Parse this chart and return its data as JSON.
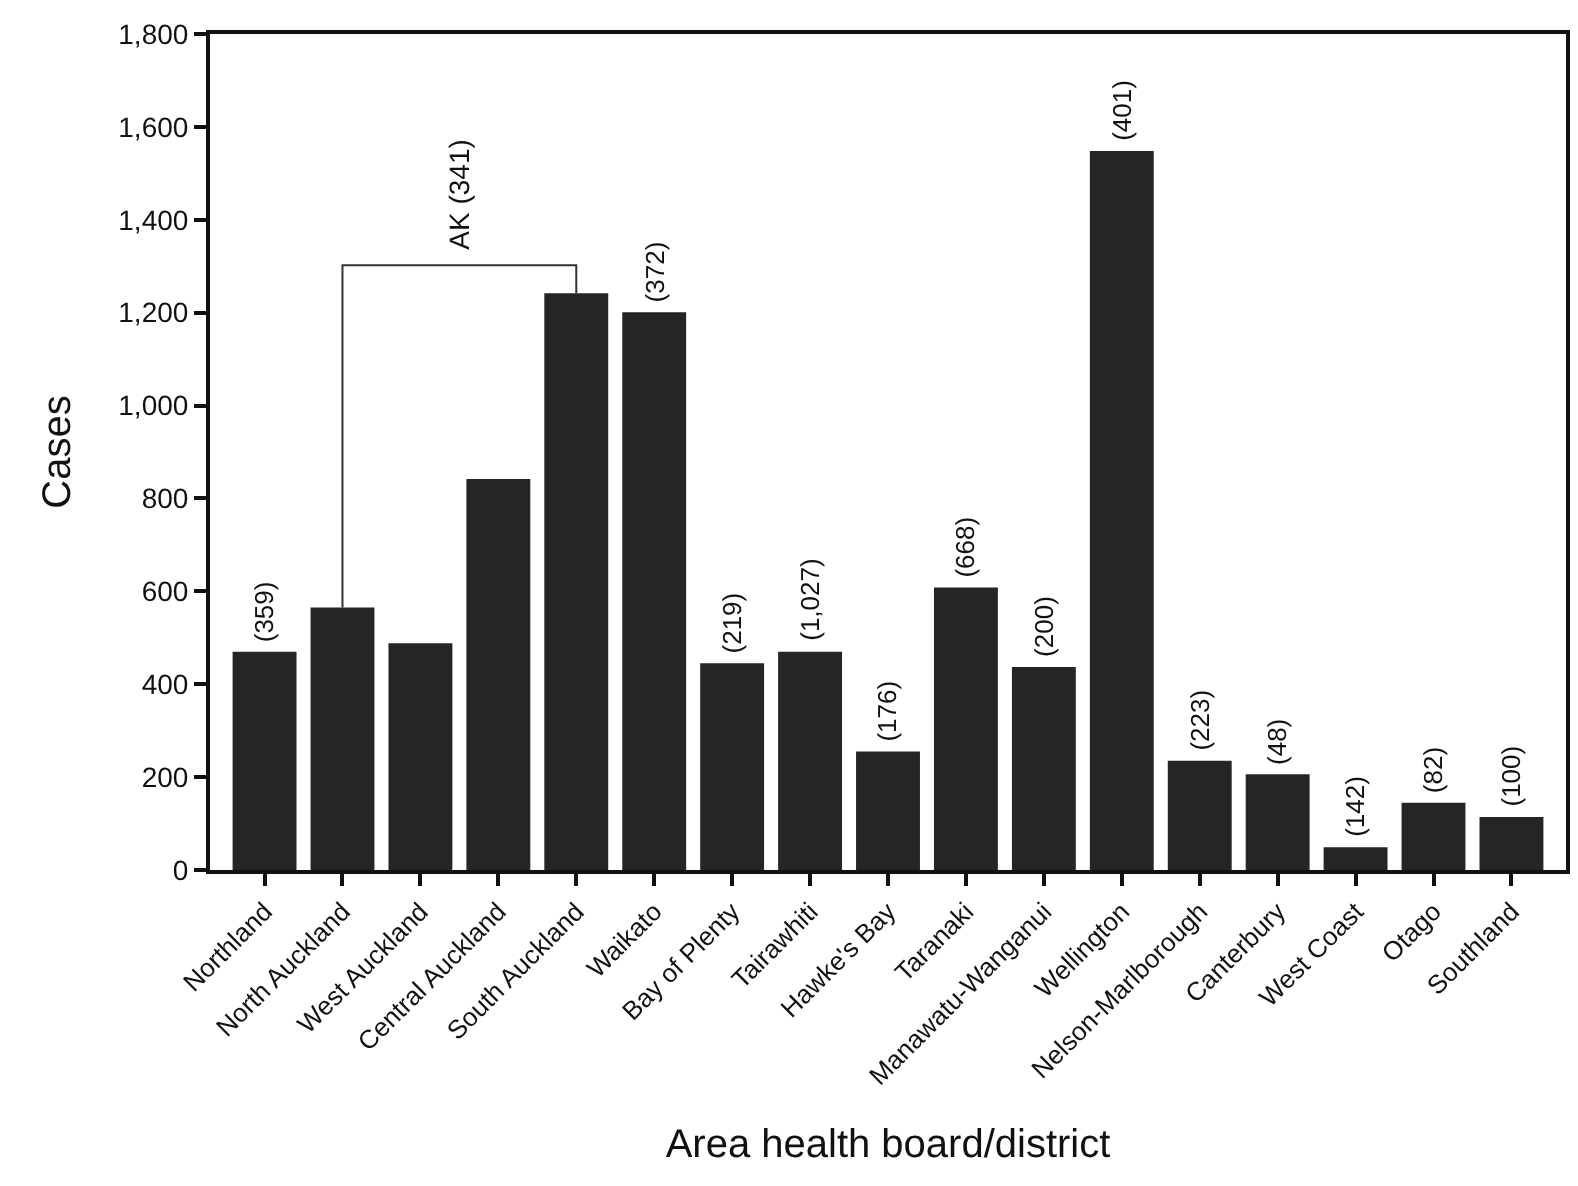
{
  "chart_data": {
    "type": "bar",
    "xlabel": "Area health board/district",
    "ylabel": "Cases",
    "categories": [
      "Northland",
      "North Auckland",
      "West Auckland",
      "Central Auckland",
      "South Auckland",
      "Waikato",
      "Bay of Plenty",
      "Tairawhiti",
      "Hawke's Bay",
      "Taranaki",
      "Manawatu-Wanganui",
      "Wellington",
      "Nelson-Marlborough",
      "Canterbury",
      "West Coast",
      "Otago",
      "Southland"
    ],
    "values": [
      470,
      565,
      488,
      842,
      1242,
      1201,
      445,
      470,
      255,
      608,
      437,
      1548,
      235,
      206,
      49,
      145,
      114
    ],
    "color": "#252525",
    "ylim": [
      0,
      1800
    ],
    "yticks": [
      {
        "value": 0,
        "label": "0"
      },
      {
        "value": 200,
        "label": "200"
      },
      {
        "value": 400,
        "label": "400"
      },
      {
        "value": 600,
        "label": "600"
      },
      {
        "value": 800,
        "label": "800"
      },
      {
        "value": 1000,
        "label": "1,000"
      },
      {
        "value": 1200,
        "label": "1,200"
      },
      {
        "value": 1400,
        "label": "1,400"
      },
      {
        "value": 1600,
        "label": "1,600"
      },
      {
        "value": 1800,
        "label": "1,800"
      }
    ],
    "annotations": [
      "AK (341)",
      {
        "text": "(359)",
        "x": "Northland",
        "y": 470
      },
      {
        "text": "(372)",
        "x": "Waikato",
        "y": 1201
      },
      {
        "text": "(219)",
        "x": "Bay of Plenty",
        "y": 445
      },
      {
        "text": "(1,027)",
        "x": "Tairawhiti",
        "y": 470
      },
      {
        "text": "(176)",
        "x": "Hawke's Bay",
        "y": 255
      },
      {
        "text": "(668)",
        "x": "Taranaki",
        "y": 608
      },
      {
        "text": "(200)",
        "x": "Manawatu-Wanganui",
        "y": 437
      },
      {
        "text": "(401)",
        "x": "Wellington",
        "y": 1548
      },
      {
        "text": "(223)",
        "x": "Nelson-Marlborough",
        "y": 235
      },
      {
        "text": "(48)",
        "x": "Canterbury",
        "y": 206
      },
      {
        "text": "(142)",
        "x": "West Coast",
        "y": 49
      },
      {
        "text": "(82)",
        "x": "Otago",
        "y": 145
      },
      {
        "text": "(100)",
        "x": "Southland",
        "y": 114
      }
    ],
    "legend": false
  }
}
